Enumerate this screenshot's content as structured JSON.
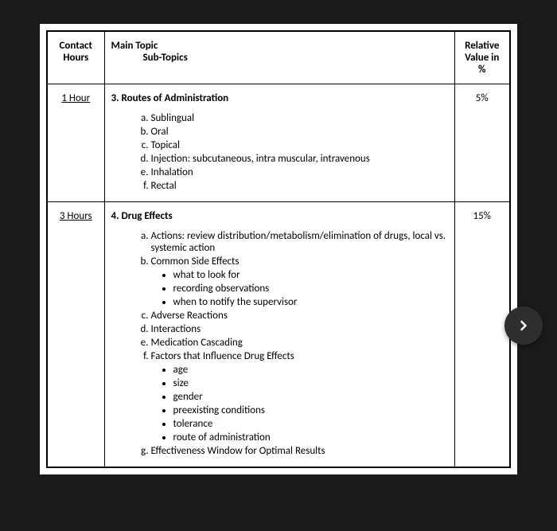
{
  "headers": {
    "contact_hours": "Contact Hours",
    "main_topic": "Main Topic",
    "sub_topics": "Sub-Topics",
    "relative_value": "Relative Value in %"
  },
  "rows": [
    {
      "hours": "1 Hour",
      "topic_title": "3. Routes of Administration",
      "value": "5%",
      "subtopics": [
        {
          "label": "Sublingual"
        },
        {
          "label": "Oral"
        },
        {
          "label": "Topical"
        },
        {
          "label": "Injection: subcutaneous, intra muscular, intravenous"
        },
        {
          "label": "Inhalation"
        },
        {
          "label": "Rectal"
        }
      ]
    },
    {
      "hours": "3 Hours",
      "topic_title": "4. Drug Effects",
      "value": "15%",
      "subtopics": [
        {
          "label": "Actions: review distribution/metabolism/elimination of drugs, local vs. systemic action"
        },
        {
          "label": "Common Side Effects",
          "bullets": [
            "what to look for",
            "recording observations",
            "when to notify the supervisor"
          ]
        },
        {
          "label": "Adverse Reactions"
        },
        {
          "label": "Interactions"
        },
        {
          "label": "Medication Cascading"
        },
        {
          "label": "Factors that Influence Drug Effects",
          "bullets": [
            "age",
            "size",
            "gender",
            "preexisting conditions",
            "tolerance",
            "route of administration"
          ]
        },
        {
          "label": "Effectiveness Window for Optimal Results"
        }
      ]
    }
  ],
  "nav": {
    "next_icon": "chevron-right"
  }
}
